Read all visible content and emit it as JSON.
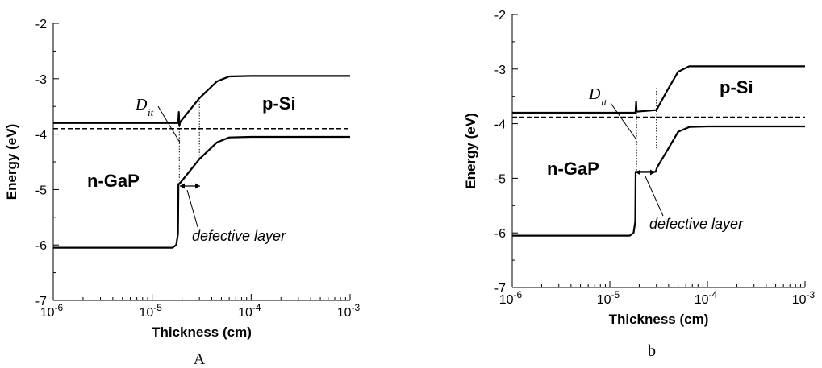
{
  "chart_data": [
    {
      "type": "line",
      "caption": "A",
      "xlabel": "Thickness (cm)",
      "ylabel": "Energy (eV)",
      "xscale": "log",
      "xlim": [
        1e-06,
        0.001
      ],
      "ylim": [
        -7,
        -2
      ],
      "xtick_labels": [
        {
          "base": "10",
          "exp": "-6"
        },
        {
          "base": "10",
          "exp": "-5"
        },
        {
          "base": "10",
          "exp": "-4"
        },
        {
          "base": "10",
          "exp": "-3"
        }
      ],
      "ytick_labels": [
        "-7",
        "-6",
        "-5",
        "-4",
        "-3",
        "-2"
      ],
      "series": [
        {
          "style": "solid",
          "points": [
            [
              1e-06,
              -3.8
            ],
            [
              1.8e-05,
              -3.8
            ],
            [
              1.83e-05,
              -3.8
            ],
            [
              1.86e-05,
              -3.6
            ],
            [
              1.88e-05,
              -3.85
            ],
            [
              1.92e-05,
              -3.78
            ],
            [
              3e-05,
              -3.35
            ],
            [
              4.5e-05,
              -3.05
            ],
            [
              6e-05,
              -2.96
            ],
            [
              0.0001,
              -2.95
            ],
            [
              0.001,
              -2.95
            ]
          ]
        },
        {
          "style": "solid",
          "points": [
            [
              1e-06,
              -6.05
            ],
            [
              1.6e-05,
              -6.05
            ],
            [
              1.75e-05,
              -6.0
            ],
            [
              1.82e-05,
              -5.8
            ],
            [
              1.84e-05,
              -4.9
            ],
            [
              1.88e-05,
              -4.9
            ],
            [
              3e-05,
              -4.45
            ],
            [
              4.5e-05,
              -4.15
            ],
            [
              6e-05,
              -4.06
            ],
            [
              0.0001,
              -4.05
            ],
            [
              0.001,
              -4.05
            ]
          ]
        },
        {
          "style": "dashed",
          "points": [
            [
              1e-06,
              -3.9
            ],
            [
              0.001,
              -3.9
            ]
          ]
        }
      ],
      "vlines": [
        1.88e-05,
        3e-05
      ],
      "region_labels": [
        "p-Si",
        "n-GaP"
      ],
      "dit": {
        "main": "D",
        "sub": "it"
      },
      "annotation": "defective layer"
    },
    {
      "type": "line",
      "caption": "b",
      "xlabel": "Thickness (cm)",
      "ylabel": "Energy (eV)",
      "xscale": "log",
      "xlim": [
        1e-06,
        0.001
      ],
      "ylim": [
        -7,
        -2
      ],
      "xtick_labels": [
        {
          "base": "10",
          "exp": "-6"
        },
        {
          "base": "10",
          "exp": "-5"
        },
        {
          "base": "10",
          "exp": "-4"
        },
        {
          "base": "10",
          "exp": "-3"
        }
      ],
      "ytick_labels": [
        "-7",
        "-6",
        "-5",
        "-4",
        "-3",
        "-2"
      ],
      "series": [
        {
          "style": "solid",
          "points": [
            [
              1e-06,
              -3.8
            ],
            [
              1.8e-05,
              -3.8
            ],
            [
              1.83e-05,
              -3.8
            ],
            [
              1.86e-05,
              -3.6
            ],
            [
              1.88e-05,
              -3.78
            ],
            [
              3e-05,
              -3.75
            ],
            [
              4e-05,
              -3.35
            ],
            [
              5e-05,
              -3.05
            ],
            [
              6.5e-05,
              -2.95
            ],
            [
              0.0001,
              -2.95
            ],
            [
              0.001,
              -2.95
            ]
          ]
        },
        {
          "style": "solid",
          "points": [
            [
              1e-06,
              -6.05
            ],
            [
              1.6e-05,
              -6.05
            ],
            [
              1.75e-05,
              -6.0
            ],
            [
              1.82e-05,
              -5.8
            ],
            [
              1.84e-05,
              -4.88
            ],
            [
              2.95e-05,
              -4.88
            ],
            [
              3.05e-05,
              -4.8
            ],
            [
              4e-05,
              -4.45
            ],
            [
              5e-05,
              -4.15
            ],
            [
              6.5e-05,
              -4.06
            ],
            [
              0.0001,
              -4.05
            ],
            [
              0.001,
              -4.05
            ]
          ]
        },
        {
          "style": "dashed",
          "points": [
            [
              1e-06,
              -3.88
            ],
            [
              0.001,
              -3.88
            ]
          ]
        }
      ],
      "vlines": [
        1.88e-05,
        3e-05
      ],
      "region_labels": [
        "p-Si",
        "n-GaP"
      ],
      "dit": {
        "main": "D",
        "sub": "it"
      },
      "annotation": "defective layer"
    }
  ]
}
